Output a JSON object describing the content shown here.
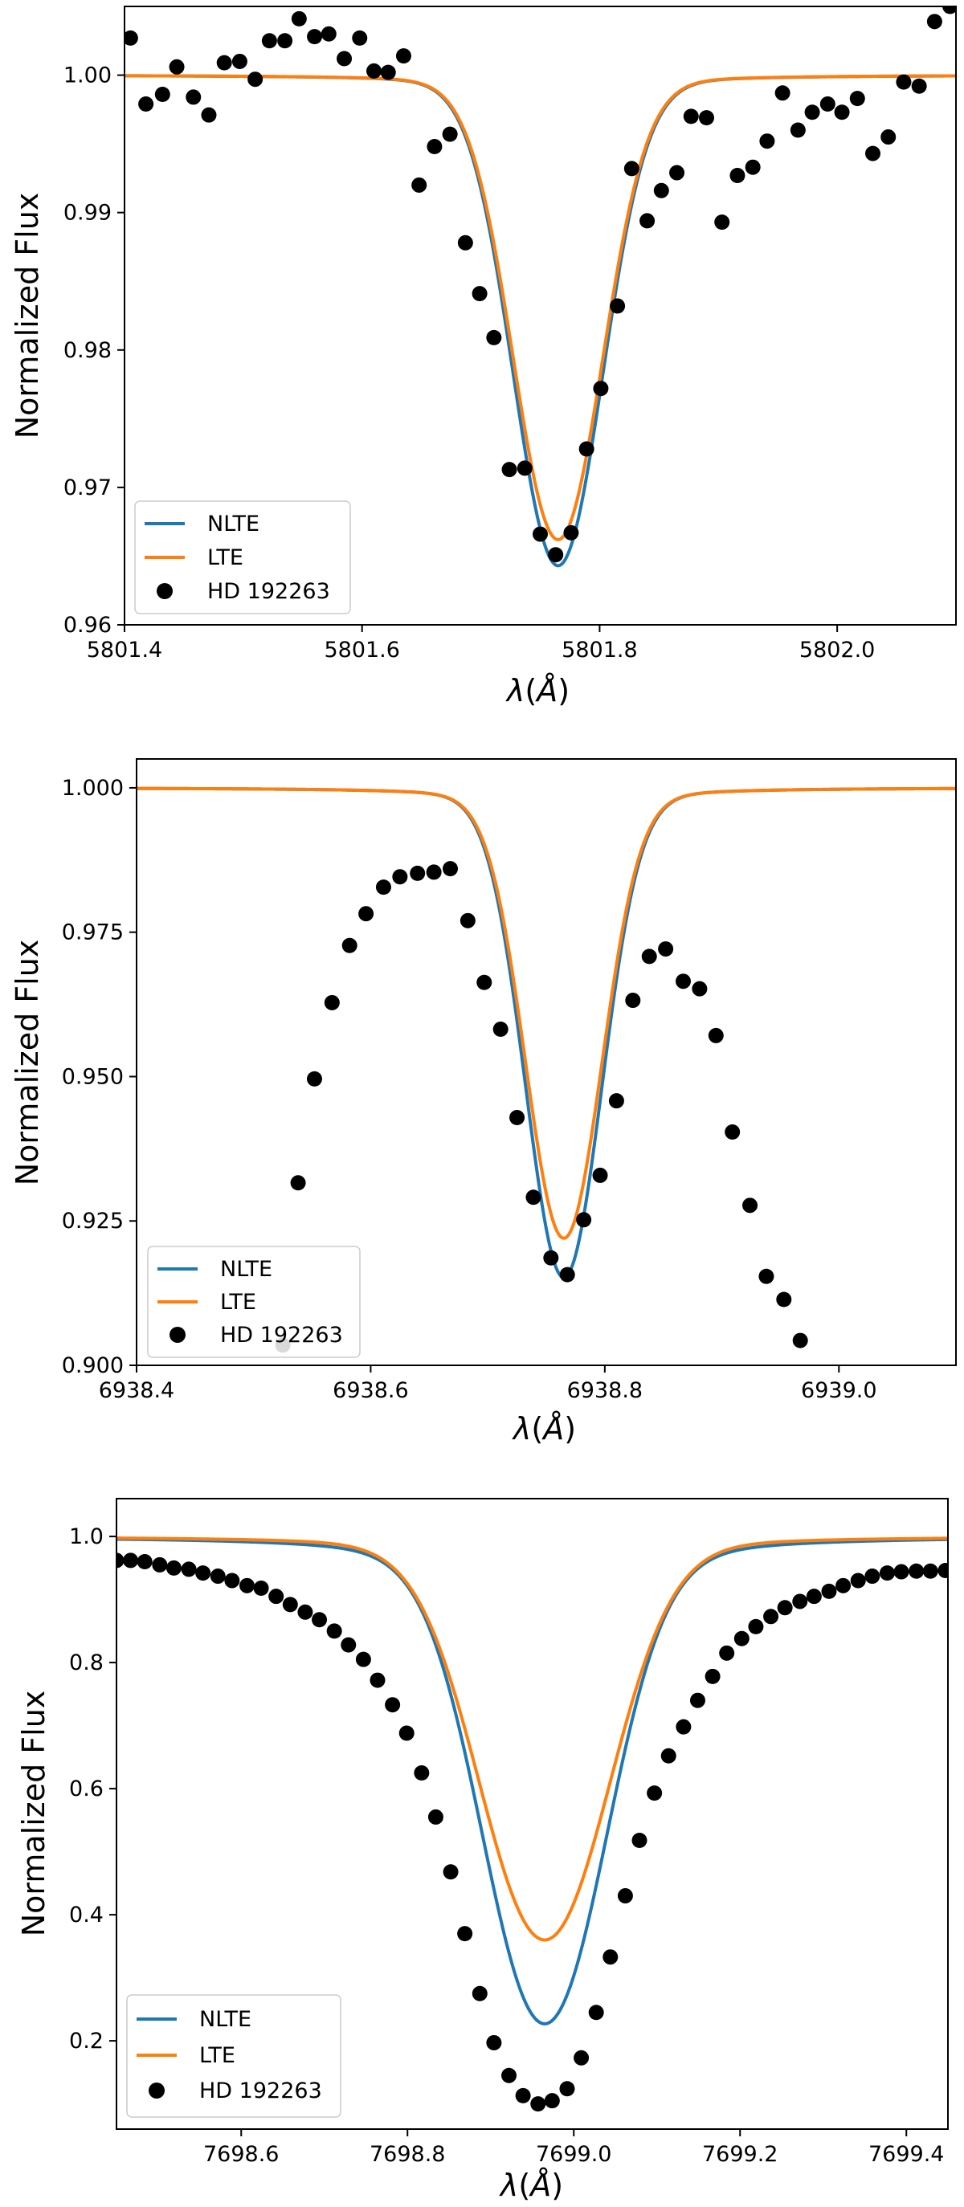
{
  "chart_data": [
    {
      "type": "line",
      "title": "",
      "xlabel_symbol": "λ",
      "xlabel_unit": "Å",
      "ylabel": "Normalized Flux",
      "xlim": [
        5801.4,
        5802.1
      ],
      "ylim": [
        0.96,
        1.005
      ],
      "xticks": [
        5801.4,
        5801.6,
        5801.8,
        5802.0
      ],
      "xtick_labels": [
        "5801.4",
        "5801.6",
        "5801.8",
        "5802.0"
      ],
      "yticks": [
        0.96,
        0.97,
        0.98,
        0.99,
        1.0
      ],
      "ytick_labels": [
        "0.96",
        "0.97",
        "0.98",
        "0.99",
        "1.00"
      ],
      "legend": {
        "position": "lower-left",
        "entries": [
          "NLTE",
          "LTE",
          "HD 192263"
        ]
      },
      "colors": {
        "NLTE": "#1f77b4",
        "LTE": "#ff7f0e",
        "data": "#000000"
      },
      "profiles": {
        "NLTE": {
          "center": 5801.765,
          "depth": 0.0357,
          "sigma": 0.037,
          "wing": 0.0018
        },
        "LTE": {
          "center": 5801.765,
          "depth": 0.0338,
          "sigma": 0.037,
          "wing": 0.0017
        }
      },
      "series": [
        {
          "name": "HD 192263",
          "points": [
            [
              5801.405,
              1.0027
            ],
            [
              5801.418,
              0.9979
            ],
            [
              5801.432,
              0.9986
            ],
            [
              5801.444,
              1.0006
            ],
            [
              5801.458,
              0.9984
            ],
            [
              5801.471,
              0.9971
            ],
            [
              5801.484,
              1.0009
            ],
            [
              5801.497,
              1.001
            ],
            [
              5801.51,
              0.9997
            ],
            [
              5801.522,
              1.0025
            ],
            [
              5801.535,
              1.0025
            ],
            [
              5801.547,
              1.0041
            ],
            [
              5801.56,
              1.0028
            ],
            [
              5801.572,
              1.003
            ],
            [
              5801.585,
              1.0012
            ],
            [
              5801.598,
              1.0027
            ],
            [
              5801.61,
              1.0003
            ],
            [
              5801.622,
              1.0002
            ],
            [
              5801.635,
              1.0014
            ],
            [
              5801.648,
              0.992
            ],
            [
              5801.661,
              0.9948
            ],
            [
              5801.674,
              0.9957
            ],
            [
              5801.687,
              0.9878
            ],
            [
              5801.699,
              0.9841
            ],
            [
              5801.711,
              0.9809
            ],
            [
              5801.724,
              0.9713
            ],
            [
              5801.737,
              0.9714
            ],
            [
              5801.75,
              0.9666
            ],
            [
              5801.763,
              0.9651
            ],
            [
              5801.776,
              0.9667
            ],
            [
              5801.789,
              0.9728
            ],
            [
              5801.801,
              0.9772
            ],
            [
              5801.815,
              0.9832
            ],
            [
              5801.827,
              0.9932
            ],
            [
              5801.84,
              0.9894
            ],
            [
              5801.852,
              0.9916
            ],
            [
              5801.865,
              0.9929
            ],
            [
              5801.877,
              0.997
            ],
            [
              5801.89,
              0.9969
            ],
            [
              5801.903,
              0.9893
            ],
            [
              5801.916,
              0.9927
            ],
            [
              5801.929,
              0.9933
            ],
            [
              5801.941,
              0.9952
            ],
            [
              5801.954,
              0.9987
            ],
            [
              5801.967,
              0.996
            ],
            [
              5801.979,
              0.9973
            ],
            [
              5801.992,
              0.9979
            ],
            [
              5802.004,
              0.9973
            ],
            [
              5802.017,
              0.9983
            ],
            [
              5802.03,
              0.9943
            ],
            [
              5802.043,
              0.9955
            ],
            [
              5802.056,
              0.9995
            ],
            [
              5802.069,
              0.9992
            ],
            [
              5802.082,
              1.0039
            ],
            [
              5802.095,
              1.005
            ]
          ]
        }
      ]
    },
    {
      "type": "line",
      "title": "",
      "xlabel_symbol": "λ",
      "xlabel_unit": "Å",
      "ylabel": "Normalized Flux",
      "xlim": [
        6938.4,
        6939.1
      ],
      "ylim": [
        0.9,
        1.005
      ],
      "xticks": [
        6938.4,
        6938.6,
        6938.8,
        6939.0
      ],
      "xtick_labels": [
        "6938.4",
        "6938.6",
        "6938.8",
        "6939.0"
      ],
      "yticks": [
        0.9,
        0.925,
        0.95,
        0.975,
        1.0
      ],
      "ytick_labels": [
        "0.900",
        "0.925",
        "0.950",
        "0.975",
        "1.000"
      ],
      "legend": {
        "position": "lower-left",
        "entries": [
          "NLTE",
          "LTE",
          "HD 192263"
        ]
      },
      "colors": {
        "NLTE": "#1f77b4",
        "LTE": "#ff7f0e",
        "data": "#000000"
      },
      "profiles": {
        "NLTE": {
          "center": 6938.765,
          "depth": 0.0848,
          "sigma": 0.032,
          "wing": 0.004
        },
        "LTE": {
          "center": 6938.765,
          "depth": 0.078,
          "sigma": 0.032,
          "wing": 0.004
        }
      },
      "series": [
        {
          "name": "HD 192263",
          "points": [
            [
              6938.525,
              0.9035
            ],
            [
              6938.538,
              0.9316
            ],
            [
              6938.552,
              0.9496
            ],
            [
              6938.567,
              0.9628
            ],
            [
              6938.582,
              0.9727
            ],
            [
              6938.596,
              0.9782
            ],
            [
              6938.611,
              0.9828
            ],
            [
              6938.625,
              0.9846
            ],
            [
              6938.64,
              0.9852
            ],
            [
              6938.654,
              0.9854
            ],
            [
              6938.668,
              0.986
            ],
            [
              6938.683,
              0.977
            ],
            [
              6938.697,
              0.9663
            ],
            [
              6938.711,
              0.9582
            ],
            [
              6938.725,
              0.9429
            ],
            [
              6938.739,
              0.9291
            ],
            [
              6938.754,
              0.9186
            ],
            [
              6938.768,
              0.9157
            ],
            [
              6938.782,
              0.9252
            ],
            [
              6938.796,
              0.9329
            ],
            [
              6938.81,
              0.9458
            ],
            [
              6938.824,
              0.9632
            ],
            [
              6938.838,
              0.9708
            ],
            [
              6938.852,
              0.9721
            ],
            [
              6938.867,
              0.9665
            ],
            [
              6938.881,
              0.9652
            ],
            [
              6938.895,
              0.9571
            ],
            [
              6938.909,
              0.9404
            ],
            [
              6938.924,
              0.9277
            ],
            [
              6938.938,
              0.9154
            ],
            [
              6938.953,
              0.9114
            ],
            [
              6938.967,
              0.9043
            ]
          ]
        }
      ]
    },
    {
      "type": "line",
      "title": "",
      "xlabel_symbol": "λ",
      "xlabel_unit": "Å",
      "ylabel": "Normalized Flux",
      "xlim": [
        7698.45,
        7699.45
      ],
      "ylim": [
        0.06,
        1.06
      ],
      "xticks": [
        7698.6,
        7698.8,
        7699.0,
        7699.2,
        7699.4
      ],
      "xtick_labels": [
        "7698.6",
        "7698.8",
        "7699.0",
        "7699.2",
        "7699.4"
      ],
      "yticks": [
        0.2,
        0.4,
        0.6,
        0.8,
        1.0
      ],
      "ytick_labels": [
        "0.2",
        "0.4",
        "0.6",
        "0.8",
        "1.0"
      ],
      "legend": {
        "position": "lower-left",
        "entries": [
          "NLTE",
          "LTE",
          "HD 192263"
        ]
      },
      "colors": {
        "NLTE": "#1f77b4",
        "LTE": "#ff7f0e",
        "data": "#000000"
      },
      "profiles": {
        "NLTE": {
          "center": 7698.965,
          "depth": 0.773,
          "sigma": 0.07,
          "wing": 0.143,
          "gamma": 0.09,
          "asym": 0.009
        },
        "LTE": {
          "center": 7698.965,
          "depth": 0.64,
          "sigma": 0.075,
          "wing": 0.087,
          "gamma": 0.09,
          "asym": 0.009
        }
      },
      "series": [
        {
          "name": "HD 192263",
          "points": [
            [
              7698.45,
              0.962
            ],
            [
              7698.467,
              0.962
            ],
            [
              7698.484,
              0.96
            ],
            [
              7698.502,
              0.955
            ],
            [
              7698.519,
              0.95
            ],
            [
              7698.537,
              0.948
            ],
            [
              7698.554,
              0.942
            ],
            [
              7698.572,
              0.937
            ],
            [
              7698.589,
              0.93
            ],
            [
              7698.607,
              0.922
            ],
            [
              7698.624,
              0.918
            ],
            [
              7698.642,
              0.905
            ],
            [
              7698.659,
              0.892
            ],
            [
              7698.677,
              0.88
            ],
            [
              7698.694,
              0.868
            ],
            [
              7698.712,
              0.85
            ],
            [
              7698.729,
              0.828
            ],
            [
              7698.747,
              0.805
            ],
            [
              7698.764,
              0.772
            ],
            [
              7698.782,
              0.733
            ],
            [
              7698.799,
              0.688
            ],
            [
              7698.817,
              0.625
            ],
            [
              7698.834,
              0.555
            ],
            [
              7698.852,
              0.468
            ],
            [
              7698.869,
              0.37
            ],
            [
              7698.887,
              0.275
            ],
            [
              7698.904,
              0.197
            ],
            [
              7698.922,
              0.145
            ],
            [
              7698.939,
              0.113
            ],
            [
              7698.957,
              0.1
            ],
            [
              7698.974,
              0.105
            ],
            [
              7698.992,
              0.124
            ],
            [
              7699.009,
              0.173
            ],
            [
              7699.027,
              0.245
            ],
            [
              7699.044,
              0.333
            ],
            [
              7699.062,
              0.43
            ],
            [
              7699.079,
              0.518
            ],
            [
              7699.097,
              0.593
            ],
            [
              7699.114,
              0.652
            ],
            [
              7699.132,
              0.698
            ],
            [
              7699.149,
              0.74
            ],
            [
              7699.167,
              0.778
            ],
            [
              7699.184,
              0.815
            ],
            [
              7699.202,
              0.838
            ],
            [
              7699.219,
              0.857
            ],
            [
              7699.237,
              0.873
            ],
            [
              7699.254,
              0.887
            ],
            [
              7699.272,
              0.897
            ],
            [
              7699.289,
              0.905
            ],
            [
              7699.307,
              0.913
            ],
            [
              7699.324,
              0.922
            ],
            [
              7699.342,
              0.93
            ],
            [
              7699.359,
              0.937
            ],
            [
              7699.377,
              0.942
            ],
            [
              7699.394,
              0.944
            ],
            [
              7699.412,
              0.945
            ],
            [
              7699.429,
              0.945
            ],
            [
              7699.447,
              0.946
            ]
          ]
        }
      ]
    }
  ]
}
